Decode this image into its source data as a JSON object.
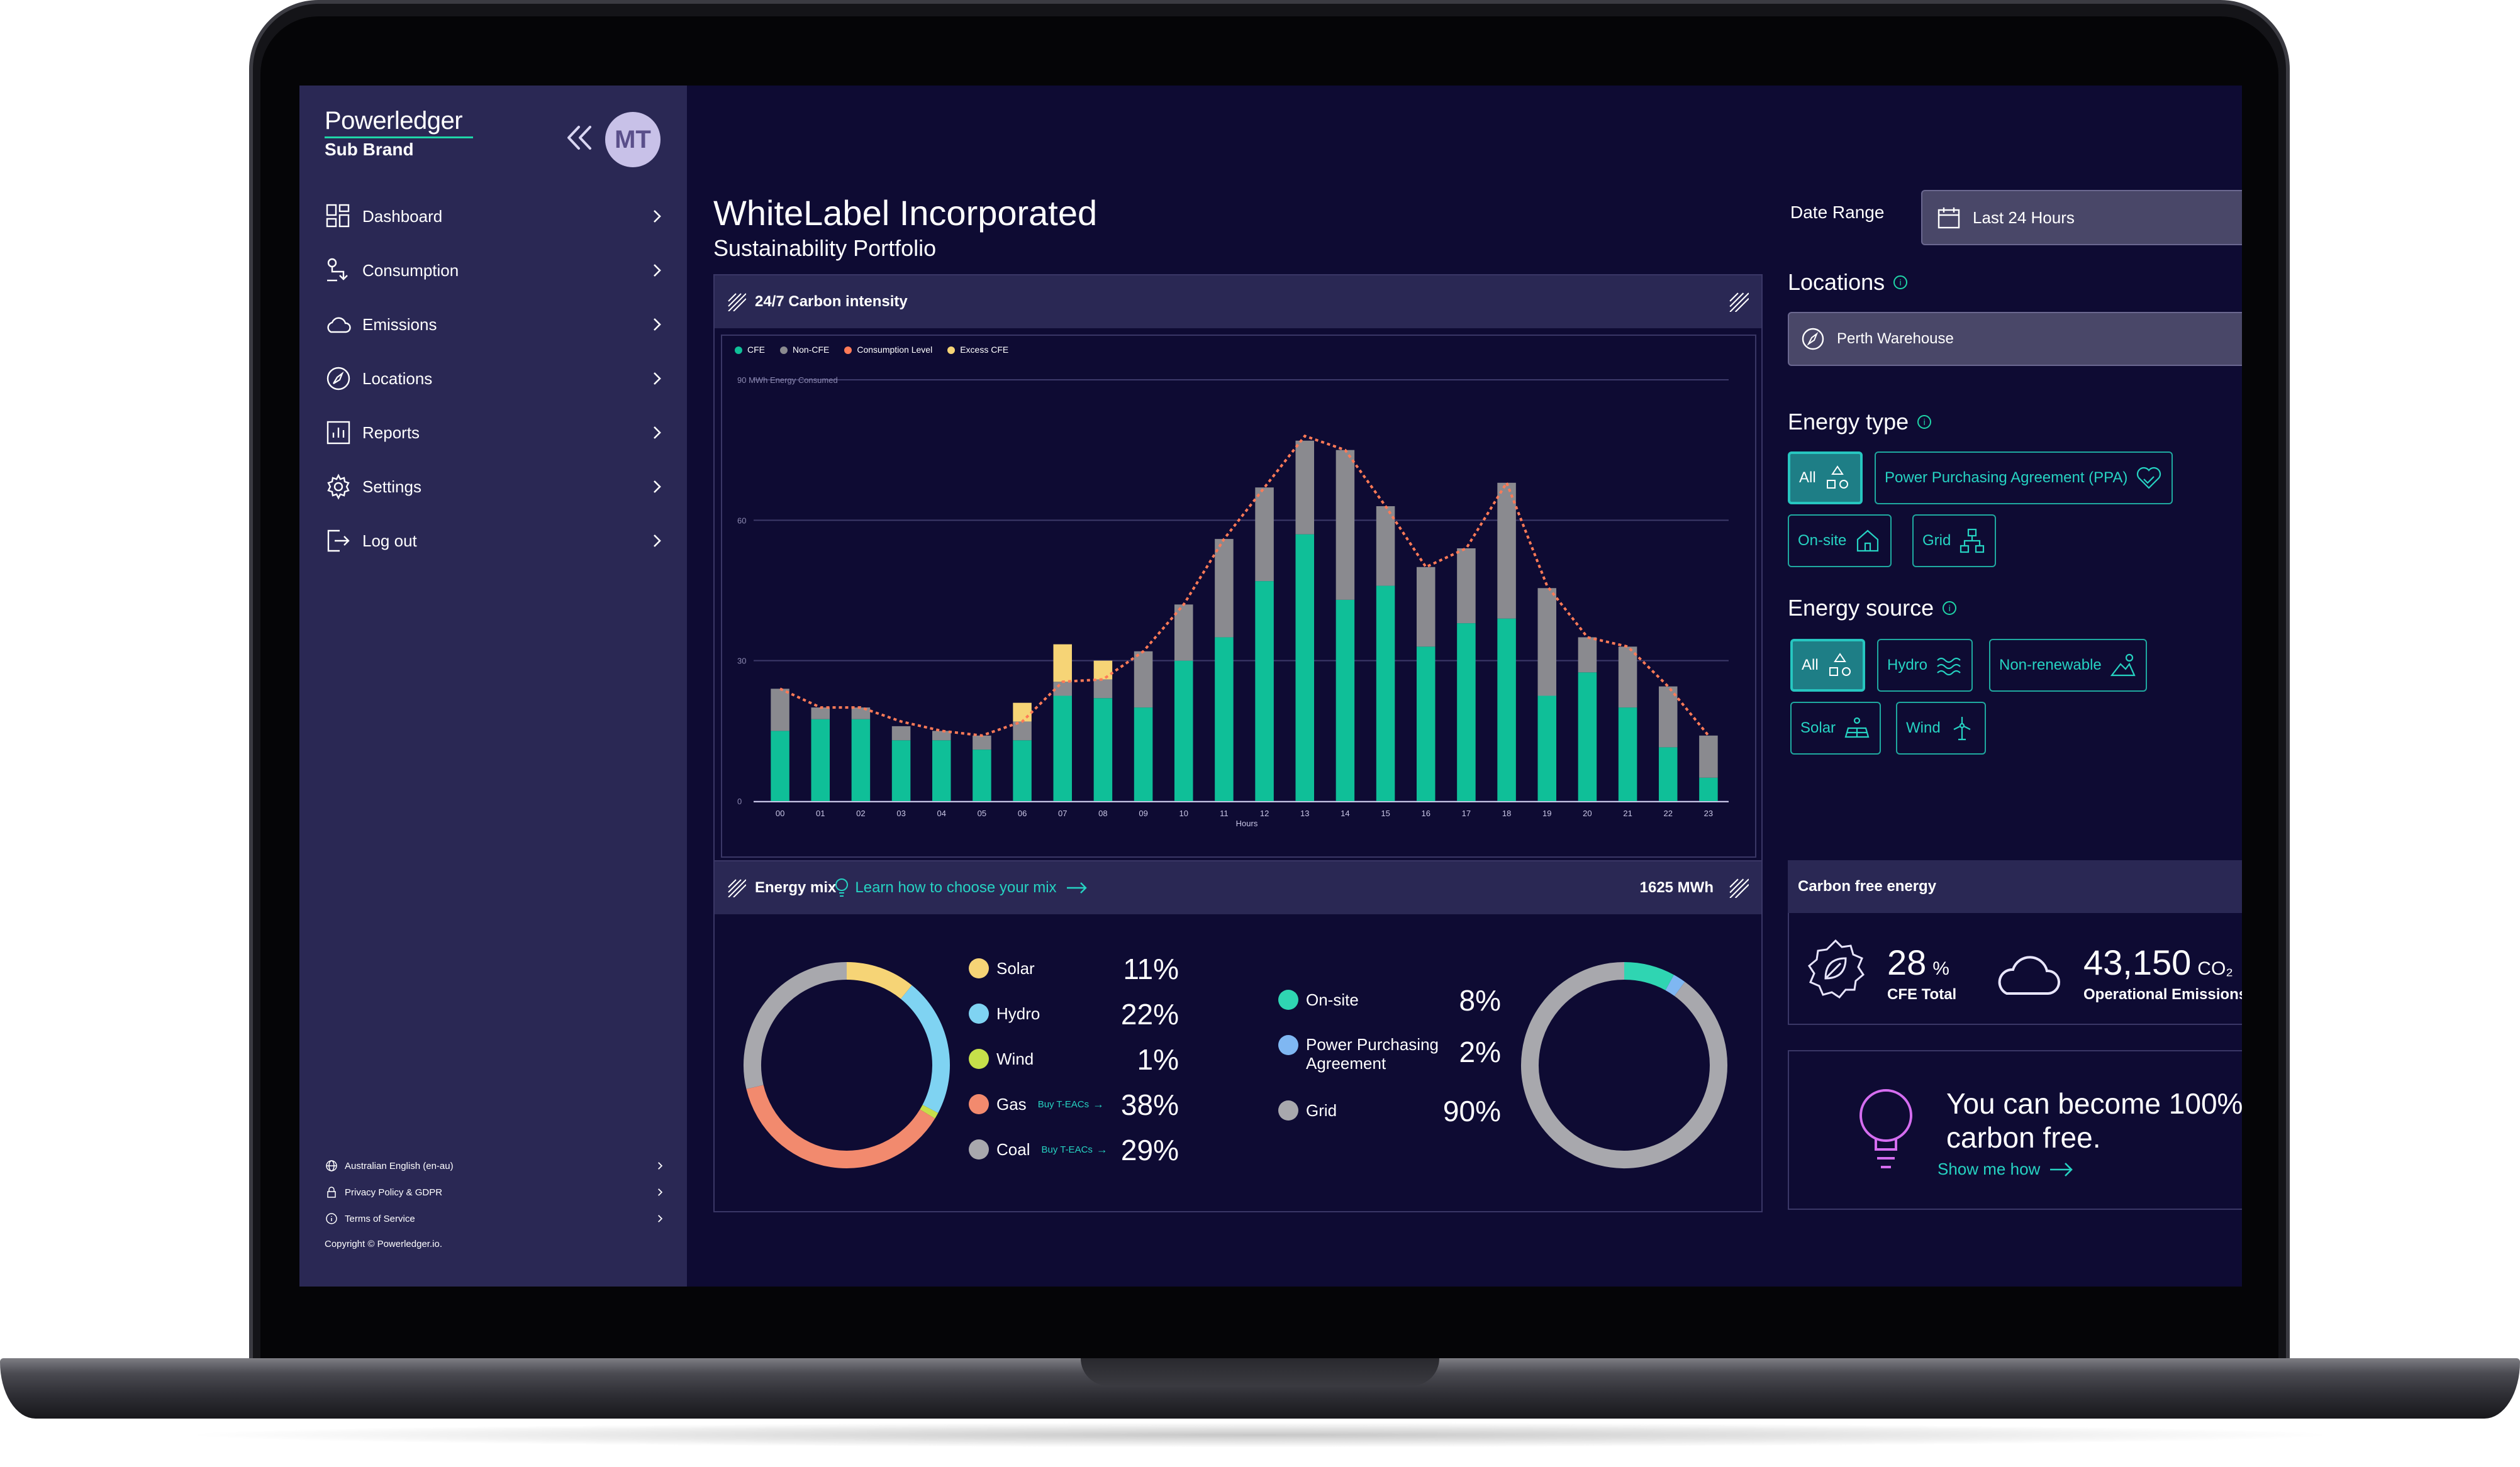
{
  "brand": {
    "name": "Powerledger",
    "sub": "Sub Brand"
  },
  "user": {
    "initials": "MT"
  },
  "nav": [
    {
      "label": "Dashboard"
    },
    {
      "label": "Consumption"
    },
    {
      "label": "Emissions"
    },
    {
      "label": "Locations"
    },
    {
      "label": "Reports"
    },
    {
      "label": "Settings"
    },
    {
      "label": "Log out"
    }
  ],
  "footer": {
    "language": "Australian English (en-au)",
    "privacy": "Privacy Policy & GDPR",
    "terms": "Terms of Service",
    "copyright": "Copyright © Powerledger.io."
  },
  "header": {
    "title": "WhiteLabel Incorporated",
    "subtitle": "Sustainability Portfolio"
  },
  "filters": {
    "date_range_label": "Date Range",
    "date_range_value": "Last 24 Hours",
    "locations_label": "Locations",
    "location_value": "Perth Warehouse",
    "energy_type_label": "Energy type",
    "energy_type_options": [
      "All",
      "Power Purchasing Agreement (PPA)",
      "On-site",
      "Grid"
    ],
    "energy_source_label": "Energy source",
    "energy_source_options": [
      "All",
      "Hydro",
      "Non-renewable",
      "Solar",
      "Wind"
    ]
  },
  "carbon_panel": {
    "title": "24/7 Carbon intensity"
  },
  "chart_data": {
    "type": "bar",
    "stacked": true,
    "legend": [
      "CFE",
      "Non-CFE",
      "Consumption Level",
      "Excess CFE"
    ],
    "ylabel": "90 MWh Energy Consumed",
    "xlabel": "Hours",
    "yticks": [
      "0",
      "30",
      "60"
    ],
    "ylim": [
      0,
      90
    ],
    "categories": [
      "00",
      "01",
      "02",
      "03",
      "04",
      "05",
      "06",
      "07",
      "08",
      "09",
      "10",
      "11",
      "12",
      "13",
      "14",
      "15",
      "16",
      "17",
      "18",
      "19",
      "20",
      "21",
      "22",
      "23"
    ],
    "series": [
      {
        "name": "CFE",
        "values": [
          15,
          17.5,
          17.5,
          13,
          13,
          11,
          13,
          22.5,
          22,
          20,
          30,
          35,
          47,
          57,
          43,
          46,
          33,
          38,
          39,
          22.5,
          27.5,
          20,
          11.5,
          5
        ]
      },
      {
        "name": "Non-CFE",
        "values": [
          9,
          2.5,
          2.5,
          3,
          2,
          3,
          4,
          3,
          4,
          12,
          12,
          21,
          20,
          20,
          32,
          17,
          17,
          16,
          29,
          23,
          7.5,
          13,
          13,
          9
        ]
      },
      {
        "name": "Excess CFE",
        "values": [
          0,
          0,
          0,
          0,
          0,
          0,
          4,
          8,
          4,
          0,
          0,
          0,
          0,
          0,
          0,
          0,
          0,
          0,
          0,
          0,
          0,
          0,
          0,
          0
        ]
      }
    ],
    "consumption_level": [
      24,
      20,
      20,
      17,
      15,
      14,
      17,
      25.5,
      26,
      32,
      42,
      56,
      67,
      78,
      75,
      63,
      50,
      54,
      68,
      46,
      35,
      33,
      24.5,
      14
    ],
    "colors": {
      "CFE": "#0fbf98",
      "Non-CFE": "#8a8a8f",
      "Consumption Level": "#ff7a57",
      "Excess CFE": "#f6d476"
    }
  },
  "energy_mix": {
    "title": "Energy mix",
    "learn_link": "Learn how to choose your mix",
    "total": "1625 MWh",
    "buy_link": "Buy T-EACs",
    "sources": [
      {
        "label": "Solar",
        "pct": "11%",
        "color": "#f6d476"
      },
      {
        "label": "Hydro",
        "pct": "22%",
        "color": "#7fd3f2"
      },
      {
        "label": "Wind",
        "pct": "1%",
        "color": "#c6e04a"
      },
      {
        "label": "Gas",
        "pct": "38%",
        "color": "#f28a6e"
      },
      {
        "label": "Coal",
        "pct": "29%",
        "color": "#a8a8ad"
      }
    ],
    "types": [
      {
        "label": "On-site",
        "pct": "8%",
        "color": "#2fd5b2"
      },
      {
        "label": "Power Purchasing Agreement",
        "pct": "2%",
        "color": "#7fb7f2"
      },
      {
        "label": "Grid",
        "pct": "90%",
        "color": "#a8a8ad"
      }
    ]
  },
  "cfe": {
    "title": "Carbon free energy",
    "pct_value": "28",
    "pct_unit": "%",
    "pct_label": "CFE Total",
    "emissions_value": "43,150",
    "emissions_unit": "CO₂",
    "emissions_label": "Operational Emissions"
  },
  "promo": {
    "text": "You can become 100% carbon free.",
    "link": "Show me how"
  }
}
